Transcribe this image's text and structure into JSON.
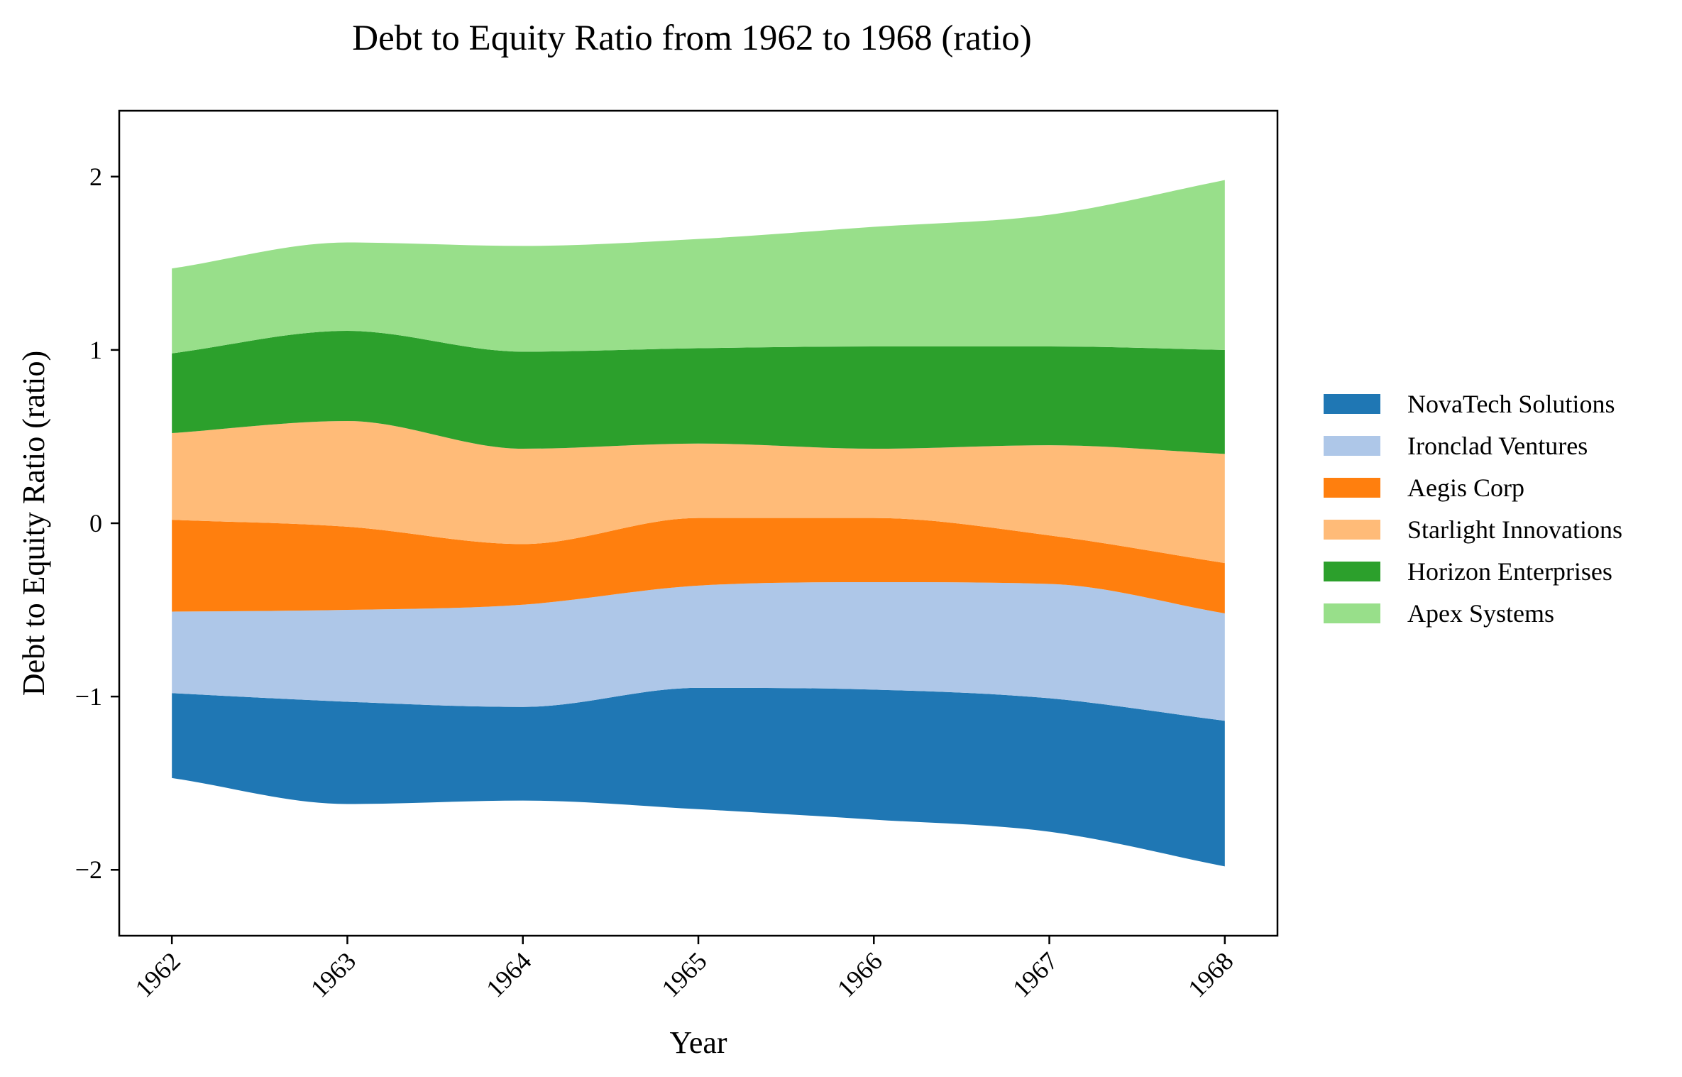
{
  "chart_data": {
    "type": "area",
    "subtype": "streamgraph",
    "title": "Debt to Equity Ratio from 1962 to 1968 (ratio)",
    "xlabel": "Year",
    "ylabel": "Debt to Equity Ratio (ratio)",
    "x": [
      "1962",
      "1963",
      "1964",
      "1965",
      "1966",
      "1967",
      "1968"
    ],
    "xlim": [
      1961.7,
      1968.3
    ],
    "ylim": [
      -2.38,
      2.38
    ],
    "y_ticks": [
      -2,
      -1,
      0,
      1,
      2
    ],
    "y_tick_labels": [
      "−2",
      "−1",
      "0",
      "1",
      "2"
    ],
    "grid": false,
    "legend_position": "right",
    "baseline": [
      -1.47,
      -1.62,
      -1.6,
      -1.65,
      -1.71,
      -1.78,
      -1.98
    ],
    "series": [
      {
        "name": "NovaTech Solutions",
        "values": [
          0.49,
          0.59,
          0.54,
          0.7,
          0.75,
          0.77,
          0.84
        ],
        "color": "#1f77b4"
      },
      {
        "name": "Ironclad Ventures",
        "values": [
          0.47,
          0.53,
          0.59,
          0.59,
          0.62,
          0.66,
          0.62
        ],
        "color": "#aec7e8"
      },
      {
        "name": "Aegis Corp",
        "values": [
          0.53,
          0.48,
          0.35,
          0.39,
          0.37,
          0.28,
          0.29
        ],
        "color": "#ff7f0e"
      },
      {
        "name": "Starlight Innovations",
        "values": [
          0.5,
          0.61,
          0.55,
          0.43,
          0.4,
          0.52,
          0.63
        ],
        "color": "#ffbb78"
      },
      {
        "name": "Horizon Enterprises",
        "values": [
          0.46,
          0.52,
          0.56,
          0.55,
          0.59,
          0.57,
          0.6
        ],
        "color": "#2ca02c"
      },
      {
        "name": "Apex Systems",
        "values": [
          0.49,
          0.51,
          0.61,
          0.63,
          0.69,
          0.76,
          0.98
        ],
        "color": "#98df8a"
      }
    ]
  }
}
